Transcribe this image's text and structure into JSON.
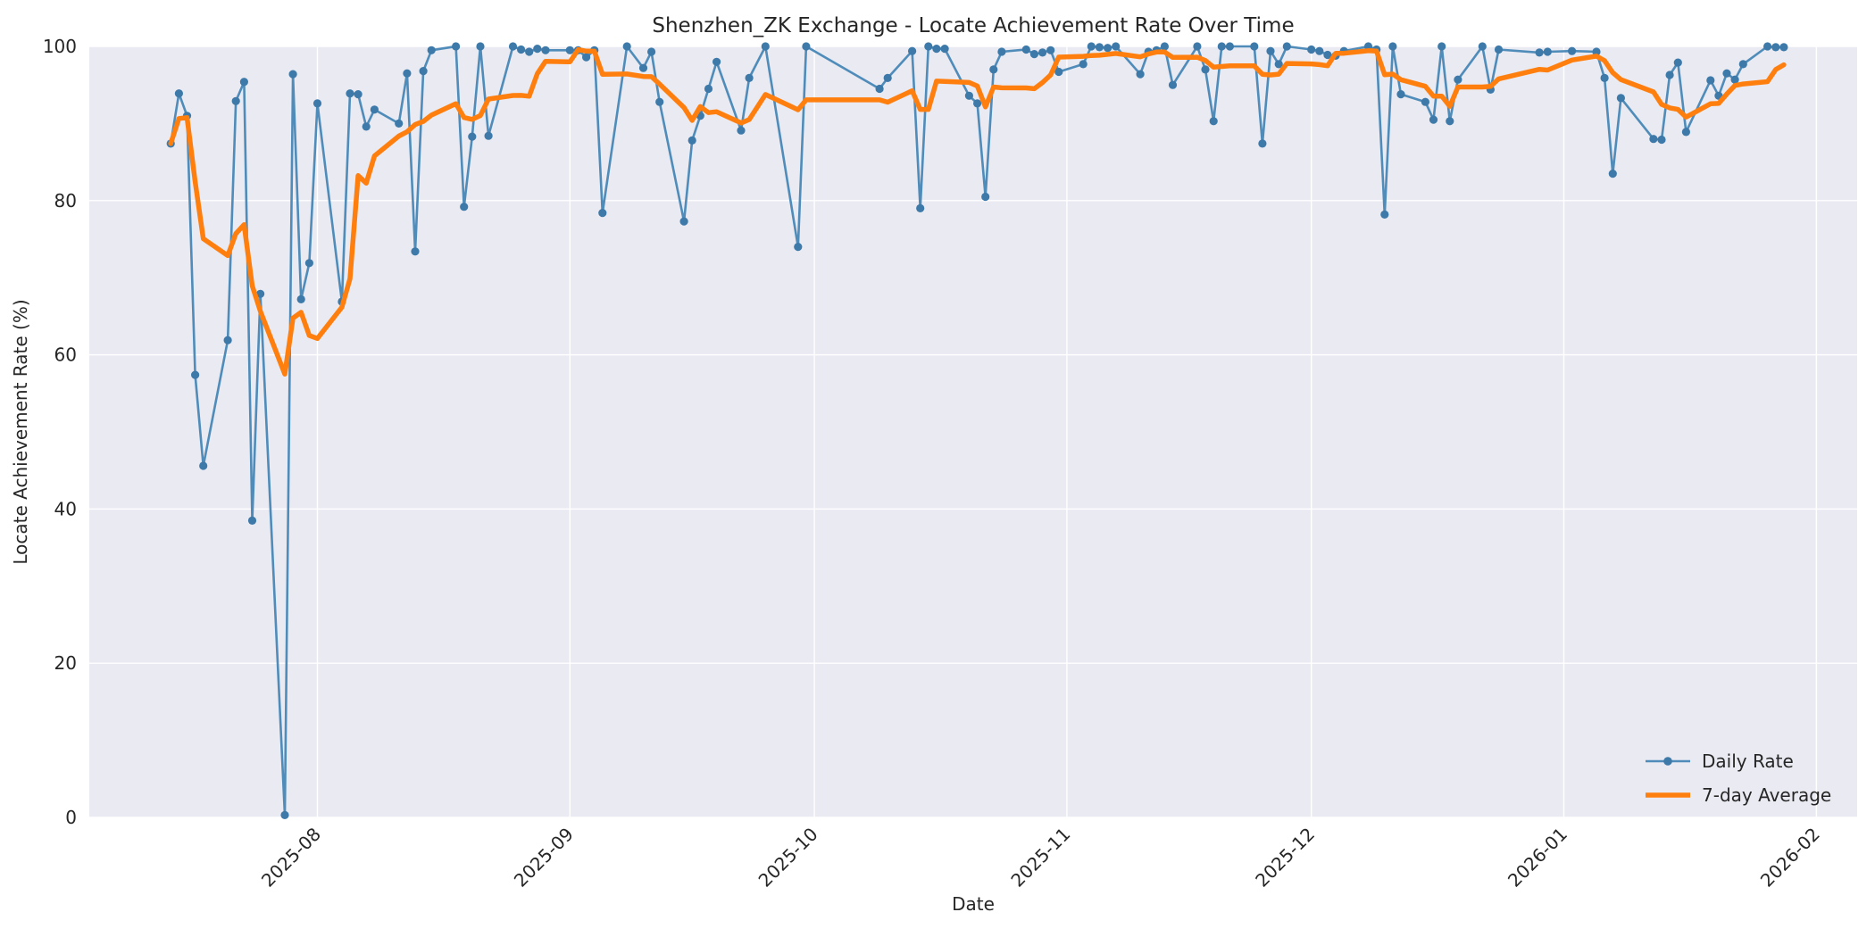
{
  "figure": {
    "title": "Shenzhen_ZK Exchange - Locate Achievement Rate Over Time",
    "xlabel": "Date",
    "ylabel": "Locate Achievement Rate (%)",
    "background": "#ffffff",
    "plot_background": "#eaeaf2",
    "grid_color": "#ffffff",
    "text_color": "#262626"
  },
  "chart_data": {
    "type": "line",
    "title": "Shenzhen_ZK Exchange - Locate Achievement Rate Over Time",
    "xlabel": "Date",
    "ylabel": "Locate Achievement Rate (%)",
    "ylim": [
      0,
      100
    ],
    "y_ticks": [
      0,
      20,
      40,
      60,
      80,
      100
    ],
    "x_ticks": [
      "2025-08",
      "2025-09",
      "2025-10",
      "2025-11",
      "2025-12",
      "2026-01",
      "2026-02"
    ],
    "x_range": [
      "2025-07-04",
      "2026-02-06"
    ],
    "grid": true,
    "legend_position": "lower right",
    "series": [
      {
        "name": "Daily Rate",
        "style": "line+marker",
        "color": "#4f8cba",
        "marker_color": "#3d7aa9",
        "line_width": 2.6,
        "marker_radius": 4.6,
        "points": [
          [
            "2025-07-14",
            87.4
          ],
          [
            "2025-07-15",
            93.9
          ],
          [
            "2025-07-16",
            91.0
          ],
          [
            "2025-07-17",
            57.4
          ],
          [
            "2025-07-18",
            45.6
          ],
          [
            "2025-07-21",
            61.9
          ],
          [
            "2025-07-22",
            92.9
          ],
          [
            "2025-07-23",
            95.4
          ],
          [
            "2025-07-24",
            38.5
          ],
          [
            "2025-07-25",
            67.9
          ],
          [
            "2025-07-28",
            0.3
          ],
          [
            "2025-07-29",
            96.4
          ],
          [
            "2025-07-30",
            67.2
          ],
          [
            "2025-07-31",
            71.9
          ],
          [
            "2025-08-01",
            92.6
          ],
          [
            "2025-08-04",
            66.9
          ],
          [
            "2025-08-05",
            93.9
          ],
          [
            "2025-08-06",
            93.8
          ],
          [
            "2025-08-07",
            89.6
          ],
          [
            "2025-08-08",
            91.8
          ],
          [
            "2025-08-11",
            90.0
          ],
          [
            "2025-08-12",
            96.5
          ],
          [
            "2025-08-13",
            73.4
          ],
          [
            "2025-08-14",
            96.8
          ],
          [
            "2025-08-15",
            99.5
          ],
          [
            "2025-08-18",
            100
          ],
          [
            "2025-08-19",
            79.2
          ],
          [
            "2025-08-20",
            88.3
          ],
          [
            "2025-08-21",
            100
          ],
          [
            "2025-08-22",
            88.4
          ],
          [
            "2025-08-25",
            100
          ],
          [
            "2025-08-26",
            99.6
          ],
          [
            "2025-08-27",
            99.3
          ],
          [
            "2025-08-28",
            99.7
          ],
          [
            "2025-08-29",
            99.5
          ],
          [
            "2025-09-01",
            99.5
          ],
          [
            "2025-09-02",
            99.5
          ],
          [
            "2025-09-03",
            98.6
          ],
          [
            "2025-09-04",
            99.5
          ],
          [
            "2025-09-05",
            78.4
          ],
          [
            "2025-09-08",
            100
          ],
          [
            "2025-09-10",
            97.2
          ],
          [
            "2025-09-11",
            99.3
          ],
          [
            "2025-09-12",
            92.8
          ],
          [
            "2025-09-15",
            77.3
          ],
          [
            "2025-09-16",
            87.8
          ],
          [
            "2025-09-17",
            91.0
          ],
          [
            "2025-09-18",
            94.5
          ],
          [
            "2025-09-19",
            98.0
          ],
          [
            "2025-09-22",
            89.1
          ],
          [
            "2025-09-23",
            95.9
          ],
          [
            "2025-09-25",
            100
          ],
          [
            "2025-09-29",
            74.0
          ],
          [
            "2025-09-30",
            100
          ],
          [
            "2025-10-09",
            94.5
          ],
          [
            "2025-10-10",
            95.9
          ],
          [
            "2025-10-13",
            99.4
          ],
          [
            "2025-10-14",
            79.0
          ],
          [
            "2025-10-15",
            100
          ],
          [
            "2025-10-16",
            99.7
          ],
          [
            "2025-10-17",
            99.7
          ],
          [
            "2025-10-20",
            93.6
          ],
          [
            "2025-10-21",
            92.6
          ],
          [
            "2025-10-22",
            80.5
          ],
          [
            "2025-10-23",
            97.0
          ],
          [
            "2025-10-24",
            99.3
          ],
          [
            "2025-10-27",
            99.6
          ],
          [
            "2025-10-28",
            99.0
          ],
          [
            "2025-10-29",
            99.2
          ],
          [
            "2025-10-30",
            99.5
          ],
          [
            "2025-10-31",
            96.7
          ],
          [
            "2025-11-03",
            97.7
          ],
          [
            "2025-11-04",
            100
          ],
          [
            "2025-11-05",
            99.9
          ],
          [
            "2025-11-06",
            99.8
          ],
          [
            "2025-11-07",
            100
          ],
          [
            "2025-11-10",
            96.4
          ],
          [
            "2025-11-11",
            99.3
          ],
          [
            "2025-11-12",
            99.5
          ],
          [
            "2025-11-13",
            100
          ],
          [
            "2025-11-14",
            95.0
          ],
          [
            "2025-11-17",
            100
          ],
          [
            "2025-11-18",
            97.0
          ],
          [
            "2025-11-19",
            90.3
          ],
          [
            "2025-11-20",
            100
          ],
          [
            "2025-11-21",
            100
          ],
          [
            "2025-11-24",
            100
          ],
          [
            "2025-11-25",
            87.4
          ],
          [
            "2025-11-26",
            99.4
          ],
          [
            "2025-11-27",
            97.7
          ],
          [
            "2025-11-28",
            100
          ],
          [
            "2025-12-01",
            99.6
          ],
          [
            "2025-12-02",
            99.4
          ],
          [
            "2025-12-03",
            98.9
          ],
          [
            "2025-12-04",
            98.8
          ],
          [
            "2025-12-05",
            99.4
          ],
          [
            "2025-12-08",
            100
          ],
          [
            "2025-12-09",
            99.6
          ],
          [
            "2025-12-10",
            78.2
          ],
          [
            "2025-12-11",
            100
          ],
          [
            "2025-12-12",
            93.8
          ],
          [
            "2025-12-15",
            92.8
          ],
          [
            "2025-12-16",
            90.5
          ],
          [
            "2025-12-17",
            100
          ],
          [
            "2025-12-18",
            90.3
          ],
          [
            "2025-12-19",
            95.7
          ],
          [
            "2025-12-22",
            100
          ],
          [
            "2025-12-23",
            94.4
          ],
          [
            "2025-12-24",
            99.6
          ],
          [
            "2025-12-29",
            99.2
          ],
          [
            "2025-12-30",
            99.3
          ],
          [
            "2026-01-02",
            99.4
          ],
          [
            "2026-01-05",
            99.3
          ],
          [
            "2026-01-06",
            95.9
          ],
          [
            "2026-01-07",
            83.5
          ],
          [
            "2026-01-08",
            93.3
          ],
          [
            "2026-01-12",
            88.0
          ],
          [
            "2026-01-13",
            87.9
          ],
          [
            "2026-01-14",
            96.3
          ],
          [
            "2026-01-15",
            97.9
          ],
          [
            "2026-01-16",
            88.9
          ],
          [
            "2026-01-19",
            95.6
          ],
          [
            "2026-01-20",
            93.6
          ],
          [
            "2026-01-21",
            96.5
          ],
          [
            "2026-01-22",
            95.7
          ],
          [
            "2026-01-23",
            97.7
          ],
          [
            "2026-01-26",
            100
          ],
          [
            "2026-01-27",
            99.9
          ],
          [
            "2026-01-28",
            99.9
          ]
        ]
      },
      {
        "name": "7-day Average",
        "style": "line",
        "color": "#ff7f0e",
        "line_width": 5.5,
        "derived": "rolling_mean_of_daily",
        "window": 7
      }
    ]
  }
}
